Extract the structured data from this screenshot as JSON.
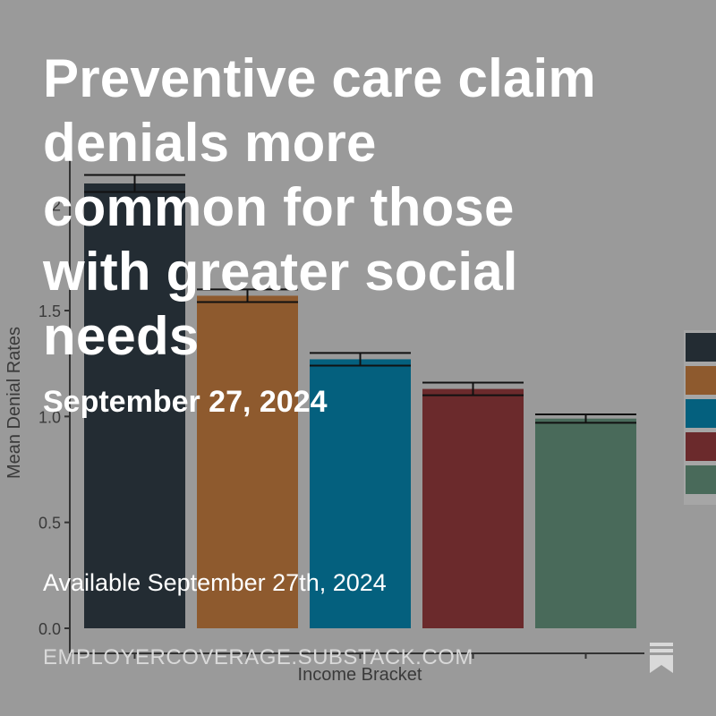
{
  "post": {
    "title": "Preventive care claim denials more common for those with greater social needs",
    "date": "September 27, 2024",
    "availability": "Available September 27th, 2024",
    "domain": "EMPLOYERCOVERAGE.SUBSTACK.COM",
    "bookmark_icon": "bookmark-icon"
  },
  "chart_data": {
    "type": "bar",
    "xlabel": "Income Bracket",
    "ylabel": "Mean Denial Rates",
    "ylim": [
      0,
      2.2
    ],
    "yticks": [
      "0.0",
      "0.5",
      "1.0",
      "1.5",
      "2"
    ],
    "ytick_values": [
      0,
      0.5,
      1.0,
      1.5,
      2.0
    ],
    "values": [
      2.1,
      1.57,
      1.27,
      1.13,
      0.99
    ],
    "errors": [
      0.04,
      0.03,
      0.03,
      0.03,
      0.02
    ],
    "colors": [
      "#232c33",
      "#8e5a2e",
      "#04607e",
      "#6b2a2c",
      "#496a5a"
    ],
    "legend_placement": "right"
  }
}
